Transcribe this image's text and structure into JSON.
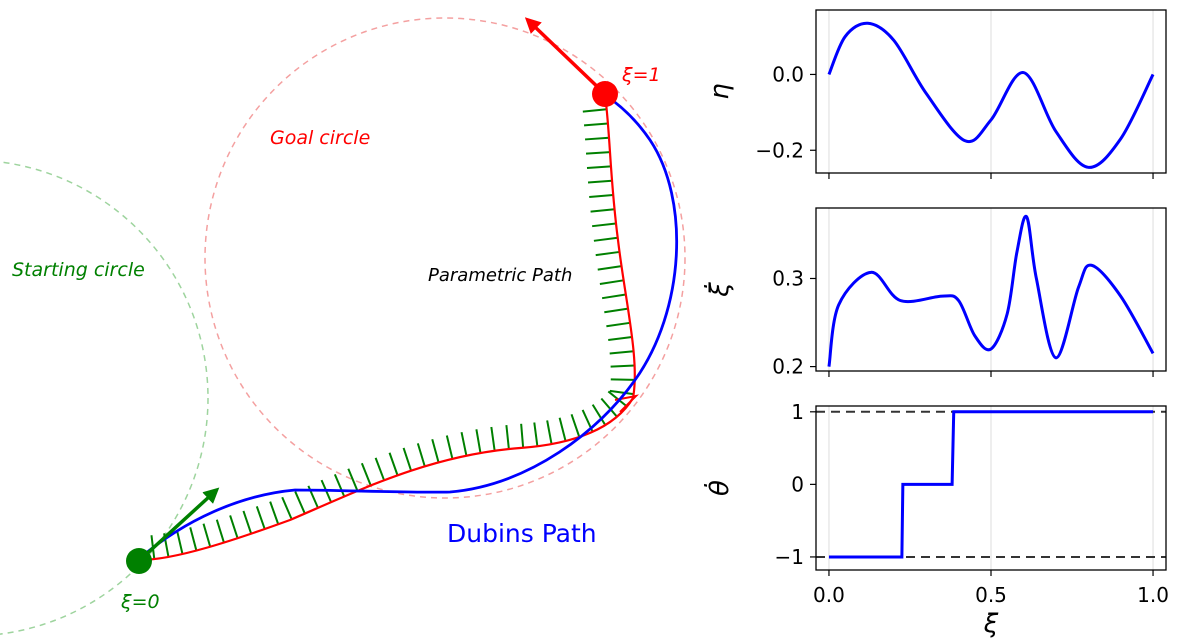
{
  "diagram": {
    "labels": {
      "goal_circle": "Goal circle",
      "starting_circle": "Starting circle",
      "parametric_path": "Parametric Path",
      "dubins_path": "Dubins Path",
      "start_point": "ξ=0",
      "goal_point": "ξ=1"
    },
    "colors": {
      "goal": "#ff0000",
      "start": "#008000",
      "dubins": "#0000ff",
      "goal_circle": "#f4a0a0",
      "start_circle": "#9ed49e"
    }
  },
  "chart_data": [
    {
      "type": "line",
      "ylabel": "η",
      "xlim": [
        0,
        1
      ],
      "ylim": [
        -0.26,
        0.17
      ],
      "yticks": [
        "0.0",
        "−0.2"
      ],
      "ytick_values": [
        0.0,
        -0.2
      ],
      "x": [
        0,
        0.05,
        0.12,
        0.2,
        0.3,
        0.42,
        0.5,
        0.6,
        0.7,
        0.8,
        0.9,
        1.0
      ],
      "series": [
        {
          "values": [
            0,
            0.1,
            0.135,
            0.09,
            -0.05,
            -0.175,
            -0.12,
            0.005,
            -0.15,
            -0.245,
            -0.17,
            0
          ]
        }
      ],
      "color": "#0000ff",
      "grid": "vertical"
    },
    {
      "type": "line",
      "ylabel": "ξ̇",
      "xlim": [
        0,
        1
      ],
      "ylim": [
        0.195,
        0.38
      ],
      "yticks": [
        "0.3",
        "0.2"
      ],
      "ytick_values": [
        0.3,
        0.2
      ],
      "x": [
        0,
        0.03,
        0.13,
        0.22,
        0.35,
        0.4,
        0.45,
        0.5,
        0.55,
        0.58,
        0.61,
        0.64,
        0.7,
        0.77,
        0.81,
        0.9,
        1.0
      ],
      "series": [
        {
          "values": [
            0.2,
            0.27,
            0.307,
            0.275,
            0.28,
            0.275,
            0.235,
            0.22,
            0.26,
            0.33,
            0.37,
            0.3,
            0.21,
            0.29,
            0.315,
            0.28,
            0.215
          ]
        }
      ],
      "color": "#0000ff",
      "grid": "vertical"
    },
    {
      "type": "line",
      "ylabel": "θ̇",
      "xlabel": "ξ",
      "xlim": [
        -0.04,
        1.04
      ],
      "ylim": [
        -1.18,
        1.08
      ],
      "yticks": [
        "1",
        "0",
        "−1"
      ],
      "ytick_values": [
        1,
        0,
        -1
      ],
      "xticks": [
        "0.0",
        "0.5",
        "1.0"
      ],
      "xtick_values": [
        0,
        0.5,
        1.0
      ],
      "x": [
        0,
        0.225,
        0.228,
        0.38,
        0.385,
        1.0
      ],
      "series": [
        {
          "values": [
            -1,
            -1,
            0,
            0,
            1,
            1
          ]
        }
      ],
      "reference_lines": [
        1,
        -1
      ],
      "color": "#0000ff",
      "grid": "vertical"
    }
  ]
}
